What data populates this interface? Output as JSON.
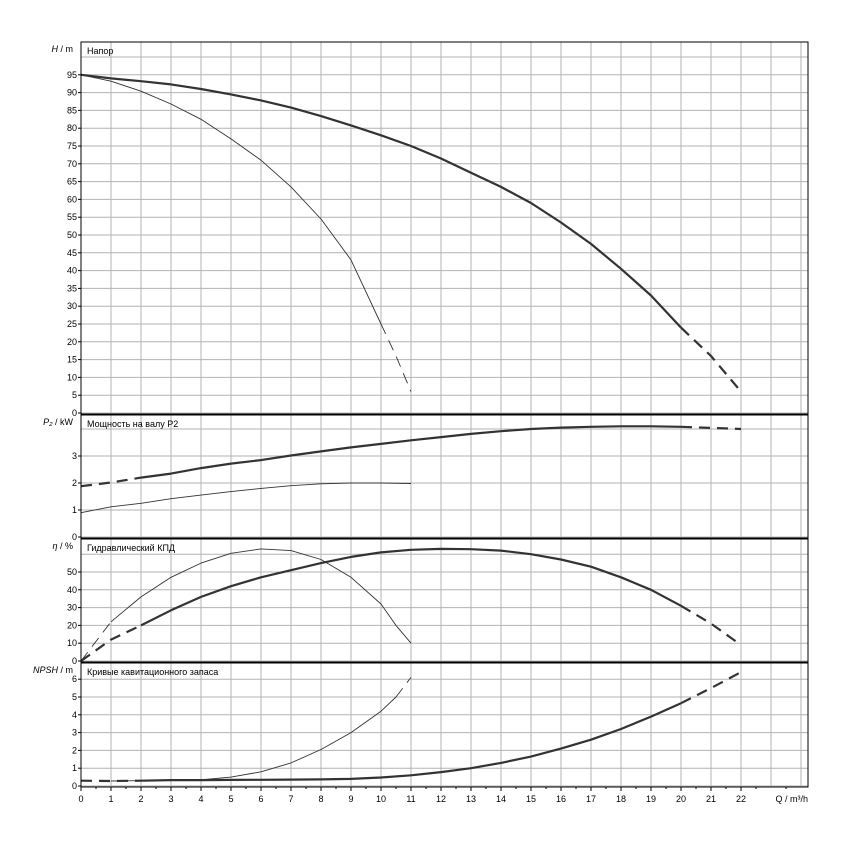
{
  "chart_data": [
    {
      "type": "line",
      "title": "Напор",
      "ylabel_symbol": "H",
      "ylabel_unit": "/ m",
      "xlim": [
        0,
        24
      ],
      "ylim": [
        0,
        105
      ],
      "yticks": [
        0,
        5,
        10,
        15,
        20,
        25,
        30,
        35,
        40,
        45,
        50,
        55,
        60,
        65,
        70,
        75,
        80,
        85,
        90,
        95
      ],
      "series": [
        {
          "style": "thick",
          "solid": [
            [
              0,
              95
            ],
            [
              1,
              94
            ],
            [
              2,
              93.2
            ],
            [
              3,
              92.3
            ],
            [
              4,
              91
            ],
            [
              5,
              89.5
            ],
            [
              6,
              87.8
            ],
            [
              7,
              85.8
            ],
            [
              8,
              83.4
            ],
            [
              9,
              80.8
            ],
            [
              10,
              78
            ],
            [
              11,
              75
            ],
            [
              12,
              71.5
            ],
            [
              13,
              67.5
            ],
            [
              14,
              63.5
            ],
            [
              15,
              59
            ],
            [
              16,
              53.5
            ],
            [
              17,
              47.5
            ],
            [
              18,
              40.5
            ],
            [
              19,
              33
            ],
            [
              20,
              24
            ]
          ],
          "dashed": [
            [
              20,
              24
            ],
            [
              21,
              16
            ],
            [
              22,
              6
            ]
          ]
        },
        {
          "style": "thin",
          "solid": [
            [
              0,
              95
            ],
            [
              1,
              93.2
            ],
            [
              2,
              90.4
            ],
            [
              3,
              86.8
            ],
            [
              4,
              82.5
            ],
            [
              5,
              77
            ],
            [
              6,
              71
            ],
            [
              7,
              63.5
            ],
            [
              8,
              54.5
            ],
            [
              9,
              43
            ],
            [
              10,
              25
            ]
          ],
          "dashed": [
            [
              10,
              25
            ],
            [
              10.5,
              16
            ],
            [
              11,
              6
            ]
          ]
        }
      ]
    },
    {
      "type": "line",
      "title": "Мощность на валу P2",
      "ylabel_symbol": "P₂",
      "ylabel_unit": "/ kW",
      "xlim": [
        0,
        24
      ],
      "ylim": [
        0,
        4.5
      ],
      "yticks": [
        0,
        1,
        2,
        3
      ],
      "series": [
        {
          "style": "thick",
          "dashed": [
            [
              0,
              1.88
            ],
            [
              1,
              2.02
            ],
            [
              2,
              2.2
            ]
          ],
          "solid": [
            [
              2,
              2.2
            ],
            [
              3,
              2.35
            ],
            [
              4,
              2.55
            ],
            [
              5,
              2.72
            ],
            [
              6,
              2.85
            ],
            [
              7,
              3.02
            ],
            [
              8,
              3.17
            ],
            [
              9,
              3.32
            ],
            [
              10,
              3.45
            ],
            [
              11,
              3.58
            ],
            [
              12,
              3.7
            ],
            [
              13,
              3.82
            ],
            [
              14,
              3.92
            ],
            [
              15,
              4.0
            ],
            [
              16,
              4.05
            ],
            [
              17,
              4.08
            ],
            [
              18,
              4.1
            ],
            [
              19,
              4.1
            ],
            [
              20,
              4.08
            ]
          ],
          "dashed2": [
            [
              20,
              4.08
            ],
            [
              22,
              4.0
            ]
          ]
        },
        {
          "style": "thin",
          "solid": [
            [
              0,
              0.9
            ],
            [
              1,
              1.12
            ],
            [
              2,
              1.25
            ],
            [
              3,
              1.42
            ],
            [
              4,
              1.55
            ],
            [
              5,
              1.68
            ],
            [
              6,
              1.8
            ],
            [
              7,
              1.9
            ],
            [
              8,
              1.97
            ],
            [
              9,
              2.0
            ],
            [
              10,
              2.0
            ],
            [
              11,
              1.98
            ]
          ]
        }
      ]
    },
    {
      "type": "line",
      "title": "Гидравлический КПД",
      "ylabel_symbol": "η",
      "ylabel_unit": "/ %",
      "xlim": [
        0,
        24
      ],
      "ylim": [
        0,
        70
      ],
      "yticks": [
        0,
        10,
        20,
        30,
        40,
        50
      ],
      "series": [
        {
          "style": "thick",
          "dashed": [
            [
              0,
              0
            ],
            [
              1,
              12
            ],
            [
              2,
              20
            ]
          ],
          "solid": [
            [
              2,
              20
            ],
            [
              3,
              28.5
            ],
            [
              4,
              36
            ],
            [
              5,
              42
            ],
            [
              6,
              47
            ],
            [
              7,
              51
            ],
            [
              8,
              55
            ],
            [
              9,
              58.5
            ],
            [
              10,
              61
            ],
            [
              11,
              62.5
            ],
            [
              12,
              63
            ],
            [
              13,
              62.8
            ],
            [
              14,
              62
            ],
            [
              15,
              60
            ],
            [
              16,
              57
            ],
            [
              17,
              53
            ],
            [
              18,
              47
            ],
            [
              19,
              40
            ],
            [
              20,
              31
            ]
          ],
          "dashed2": [
            [
              20,
              31
            ],
            [
              21,
              21
            ],
            [
              22,
              9
            ]
          ]
        },
        {
          "style": "thin",
          "dashed": [
            [
              0,
              0
            ],
            [
              1,
              22
            ]
          ],
          "solid": [
            [
              1,
              22
            ],
            [
              2,
              36
            ],
            [
              3,
              47
            ],
            [
              4,
              55
            ],
            [
              5,
              60.5
            ],
            [
              6,
              63
            ],
            [
              7,
              62
            ],
            [
              8,
              57
            ],
            [
              9,
              47
            ],
            [
              10,
              32
            ],
            [
              10.5,
              20
            ],
            [
              11,
              10
            ]
          ]
        }
      ]
    },
    {
      "type": "line",
      "title": "Кривые кавитационного запаса",
      "ylabel_symbol": "NPSH",
      "ylabel_unit": "/ m",
      "xlim": [
        0,
        24
      ],
      "ylim": [
        0,
        7
      ],
      "yticks": [
        0,
        1,
        2,
        3,
        4,
        5,
        6
      ],
      "series": [
        {
          "style": "thick",
          "dashed": [
            [
              0,
              0.3
            ],
            [
              1,
              0.28
            ],
            [
              2,
              0.3
            ]
          ],
          "solid": [
            [
              2,
              0.3
            ],
            [
              3,
              0.33
            ],
            [
              4,
              0.33
            ],
            [
              5,
              0.34
            ],
            [
              6,
              0.35
            ],
            [
              7,
              0.36
            ],
            [
              8,
              0.37
            ],
            [
              9,
              0.4
            ],
            [
              10,
              0.48
            ],
            [
              11,
              0.6
            ],
            [
              12,
              0.78
            ],
            [
              13,
              1.0
            ],
            [
              14,
              1.3
            ],
            [
              15,
              1.65
            ],
            [
              16,
              2.1
            ],
            [
              17,
              2.6
            ],
            [
              18,
              3.2
            ],
            [
              19,
              3.9
            ],
            [
              20,
              4.65
            ]
          ],
          "dashed2": [
            [
              20,
              4.65
            ],
            [
              21,
              5.5
            ],
            [
              22,
              6.4
            ]
          ]
        },
        {
          "style": "thin",
          "solid": [
            [
              1,
              0.28
            ],
            [
              2,
              0.3
            ],
            [
              3,
              0.33
            ],
            [
              4,
              0.35
            ],
            [
              5,
              0.5
            ],
            [
              6,
              0.8
            ],
            [
              7,
              1.3
            ],
            [
              8,
              2.05
            ],
            [
              9,
              3.0
            ],
            [
              10,
              4.2
            ],
            [
              10.5,
              5.0
            ]
          ],
          "dashed": [
            [
              10.5,
              5.0
            ],
            [
              11,
              6.1
            ]
          ]
        }
      ]
    }
  ],
  "x_axis": {
    "label": "Q / m³/h",
    "ticks": [
      0,
      1,
      2,
      3,
      4,
      5,
      6,
      7,
      8,
      9,
      10,
      11,
      12,
      13,
      14,
      15,
      16,
      17,
      18,
      19,
      20,
      21,
      22
    ]
  },
  "colors": {
    "curve": "#333333",
    "grid": "#b3b3b3",
    "frame": "#000000"
  }
}
